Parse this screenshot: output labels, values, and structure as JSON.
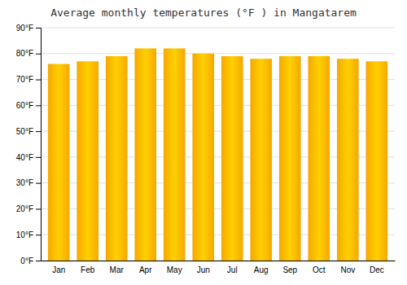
{
  "chart_data": {
    "type": "bar",
    "title": "Average monthly temperatures (°F ) in Mangatarem",
    "categories": [
      "Jan",
      "Feb",
      "Mar",
      "Apr",
      "May",
      "Jun",
      "Jul",
      "Aug",
      "Sep",
      "Oct",
      "Nov",
      "Dec"
    ],
    "values": [
      76,
      77,
      79,
      82,
      82,
      80,
      79,
      78,
      79,
      79,
      78,
      77
    ],
    "color": "#F5A800",
    "ylim": [
      0,
      90
    ],
    "yticks": [
      {
        "value": 0,
        "label": "0°F"
      },
      {
        "value": 10,
        "label": "10°F"
      },
      {
        "value": 20,
        "label": "20°F"
      },
      {
        "value": 30,
        "label": "30°F"
      },
      {
        "value": 40,
        "label": "40°F"
      },
      {
        "value": 50,
        "label": "50°F"
      },
      {
        "value": 60,
        "label": "60°F"
      },
      {
        "value": 70,
        "label": "70°F"
      },
      {
        "value": 80,
        "label": "80°F"
      },
      {
        "value": 90,
        "label": "90°F"
      }
    ],
    "grid": true
  }
}
